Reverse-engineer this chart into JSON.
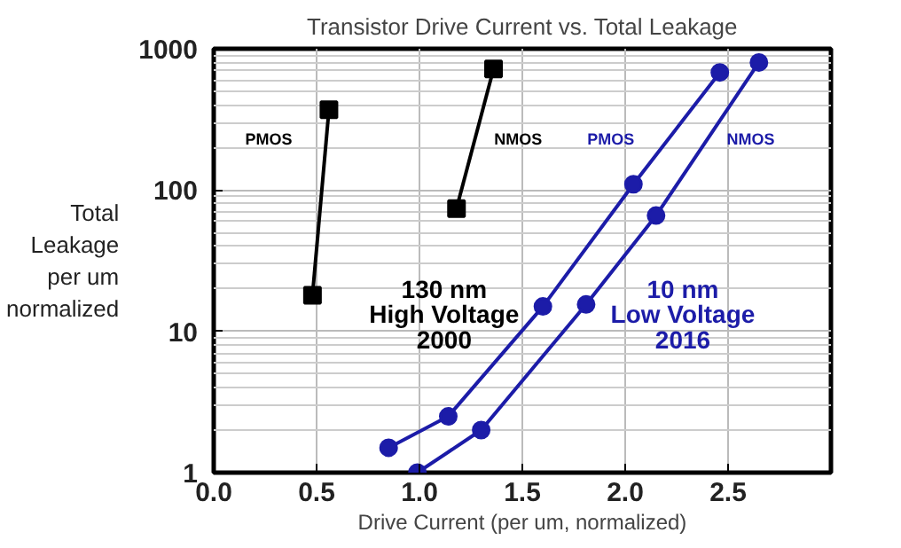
{
  "chart_data": {
    "type": "line",
    "title": "Transistor Drive Current vs. Total Leakage",
    "xlabel": "Drive Current (per um, normalized)",
    "ylabel": "Total\nLeakage\nper um\nnormalized",
    "xlim": [
      0,
      3
    ],
    "ylim": [
      1,
      1000
    ],
    "log": "y",
    "xticks": [
      {
        "value": 0,
        "label": "0.0"
      },
      {
        "value": 0.5,
        "label": "0.5"
      },
      {
        "value": 1,
        "label": "1.0"
      },
      {
        "value": 1.5,
        "label": "1.5"
      },
      {
        "value": 2,
        "label": "2.0"
      },
      {
        "value": 2.5,
        "label": "2.5"
      }
    ],
    "yticks": [
      1,
      10,
      100,
      1000
    ],
    "grid": true,
    "annotations": [
      "130 nm\nHigh Voltage\n2000",
      "10 nm\nLow Voltage\n2016"
    ],
    "series": [
      {
        "name": "PMOS",
        "color": "#000000",
        "marker": "square",
        "x": [
          0.48,
          0.56
        ],
        "values": [
          18,
          370
        ]
      },
      {
        "name": "NMOS",
        "color": "#000000",
        "marker": "square",
        "x": [
          1.18,
          1.36
        ],
        "values": [
          74,
          720
        ]
      },
      {
        "name": "PMOS",
        "color": "#1c1ca8",
        "marker": "circle",
        "x": [
          0.85,
          1.14,
          1.6,
          2.04,
          2.46
        ],
        "values": [
          1.5,
          2.5,
          15,
          110,
          680
        ]
      },
      {
        "name": "NMOS",
        "color": "#1c1ca8",
        "marker": "circle",
        "x": [
          0.99,
          1.3,
          1.81,
          2.15,
          2.65
        ],
        "values": [
          1,
          2,
          15.5,
          66,
          800
        ]
      }
    ]
  }
}
